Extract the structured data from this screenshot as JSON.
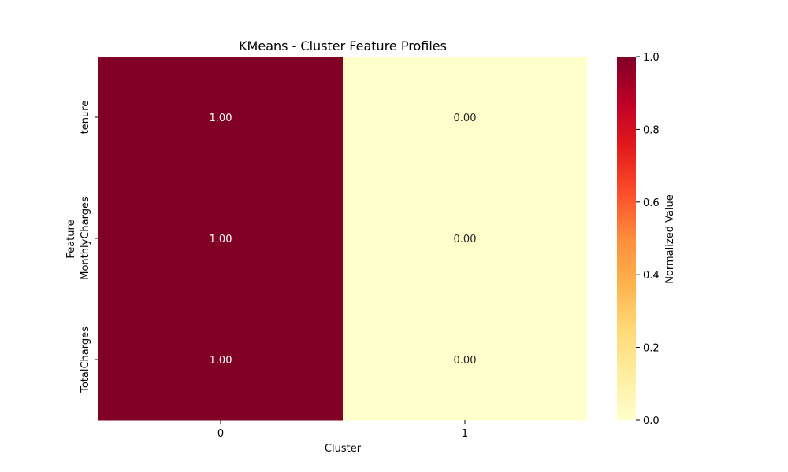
{
  "chart_data": {
    "type": "heatmap",
    "title": "KMeans - Cluster Feature Profiles",
    "xlabel": "Cluster",
    "ylabel": "Feature",
    "x_categories": [
      "0",
      "1"
    ],
    "y_categories": [
      "tenure",
      "MonthlyCharges",
      "TotalCharges"
    ],
    "values": [
      [
        1.0,
        0.0
      ],
      [
        1.0,
        0.0
      ],
      [
        1.0,
        0.0
      ]
    ],
    "cell_labels": [
      [
        "1.00",
        "0.00"
      ],
      [
        "1.00",
        "0.00"
      ],
      [
        "1.00",
        "0.00"
      ]
    ],
    "colormap": "YlOrRd",
    "colorbar": {
      "label": "Normalized Value",
      "range": [
        0.0,
        1.0
      ],
      "ticks": [
        "0.0",
        "0.2",
        "0.4",
        "0.6",
        "0.8",
        "1.0"
      ],
      "tick_values": [
        0.0,
        0.2,
        0.4,
        0.6,
        0.8,
        1.0
      ],
      "placement": "right"
    },
    "colors": {
      "max": "#800026",
      "min": "#ffffcc",
      "text_on_dark": "#ffffff",
      "text_on_light": "#262626"
    }
  }
}
